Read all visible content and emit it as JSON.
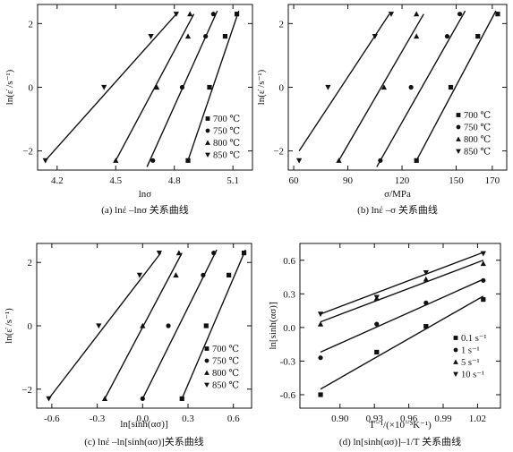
{
  "chart_data": [
    {
      "id": "a",
      "type": "scatter",
      "caption": "(a) lnέ –lnσ 关系曲线",
      "xlabel": "lnσ",
      "ylabel": "ln(ε̇ /s⁻¹)",
      "xlim": [
        4.1,
        5.2
      ],
      "ylim": [
        -2.6,
        2.6
      ],
      "xticks": [
        4.2,
        4.5,
        4.8,
        5.1
      ],
      "xtick_labels": [
        "4.2",
        "4.5",
        "4.8",
        "5.1"
      ],
      "yticks": [
        -2,
        0,
        2
      ],
      "ytick_labels": [
        "−2",
        "0",
        "2"
      ],
      "legend_position": "bottom-right",
      "series": [
        {
          "name": "700 ℃",
          "marker": "square",
          "x": [
            4.87,
            4.98,
            5.06,
            5.12
          ],
          "y": [
            -2.3,
            0.0,
            1.6,
            2.3
          ],
          "fit": [
            [
              4.87,
              -2.3
            ],
            [
              5.13,
              2.4
            ]
          ]
        },
        {
          "name": "750 ℃",
          "marker": "circle",
          "x": [
            4.69,
            4.84,
            4.96,
            5.0
          ],
          "y": [
            -2.3,
            0.0,
            1.6,
            2.3
          ],
          "fit": [
            [
              4.66,
              -2.5
            ],
            [
              5.02,
              2.4
            ]
          ]
        },
        {
          "name": "800 ℃",
          "marker": "triangle-up",
          "x": [
            4.5,
            4.71,
            4.87,
            4.88
          ],
          "y": [
            -2.3,
            0.0,
            1.6,
            2.3
          ],
          "fit": [
            [
              4.5,
              -2.3
            ],
            [
              4.9,
              2.3
            ]
          ]
        },
        {
          "name": "850 ℃",
          "marker": "triangle-down",
          "x": [
            4.14,
            4.44,
            4.68,
            4.81
          ],
          "y": [
            -2.3,
            0.0,
            1.6,
            2.3
          ],
          "fit": [
            [
              4.14,
              -2.3
            ],
            [
              4.81,
              2.3
            ]
          ]
        }
      ]
    },
    {
      "id": "b",
      "type": "scatter",
      "caption": "(b) lnέ –σ 关系曲线",
      "xlabel": "σ/MPa",
      "ylabel": "ln(ε̇ /s⁻¹)",
      "xlim": [
        57,
        178
      ],
      "ylim": [
        -2.6,
        2.6
      ],
      "xticks": [
        60,
        90,
        120,
        150,
        170
      ],
      "xtick_labels": [
        "60",
        "90",
        "120",
        "150",
        "170"
      ],
      "yticks": [
        -2,
        0,
        2
      ],
      "ytick_labels": [
        "−2",
        "0",
        "2"
      ],
      "legend_position": "bottom-right",
      "series": [
        {
          "name": "700 ℃",
          "marker": "square",
          "x": [
            128,
            147,
            162,
            173
          ],
          "y": [
            -2.3,
            0.0,
            1.6,
            2.3
          ],
          "fit": [
            [
              128,
              -2.3
            ],
            [
              172,
              2.4
            ]
          ]
        },
        {
          "name": "750 ℃",
          "marker": "circle",
          "x": [
            108,
            125,
            145,
            152
          ],
          "y": [
            -2.3,
            0.0,
            1.6,
            2.3
          ],
          "fit": [
            [
              106,
              -2.5
            ],
            [
              155,
              2.4
            ]
          ]
        },
        {
          "name": "800 ℃",
          "marker": "triangle-up",
          "x": [
            85,
            110,
            128,
            128
          ],
          "y": [
            -2.3,
            0.0,
            1.6,
            2.3
          ],
          "fit": [
            [
              85,
              -2.3
            ],
            [
              132,
              2.3
            ]
          ]
        },
        {
          "name": "850 ℃",
          "marker": "triangle-down",
          "x": [
            63,
            79,
            105,
            114
          ],
          "y": [
            -2.3,
            0.0,
            1.6,
            2.3
          ],
          "fit": [
            [
              63,
              -2.0
            ],
            [
              113,
              2.3
            ]
          ]
        }
      ]
    },
    {
      "id": "c",
      "type": "scatter",
      "caption": "(c) lnέ –ln[sinh(ασ)]关系曲线",
      "xlabel": "ln[sinh(ασ)]",
      "ylabel": "ln(ε̇ /s⁻¹)",
      "xlim": [
        -0.7,
        0.72
      ],
      "ylim": [
        -2.6,
        2.6
      ],
      "xticks": [
        -0.6,
        -0.3,
        0.0,
        0.3,
        0.6
      ],
      "xtick_labels": [
        "-0.6",
        "-0.3",
        "0.0",
        "0.3",
        "0.6"
      ],
      "yticks": [
        -2,
        0,
        2
      ],
      "ytick_labels": [
        "−2",
        "0",
        "2"
      ],
      "legend_position": "bottom-right",
      "series": [
        {
          "name": "700 ℃",
          "marker": "square",
          "x": [
            0.26,
            0.42,
            0.57,
            0.67
          ],
          "y": [
            -2.3,
            0.0,
            1.6,
            2.3
          ],
          "fit": [
            [
              0.26,
              -2.3
            ],
            [
              0.68,
              2.4
            ]
          ]
        },
        {
          "name": "750 ℃",
          "marker": "circle",
          "x": [
            0.0,
            0.17,
            0.4,
            0.47
          ],
          "y": [
            -2.3,
            0.0,
            1.6,
            2.3
          ],
          "fit": [
            [
              0.0,
              -2.3
            ],
            [
              0.49,
              2.4
            ]
          ]
        },
        {
          "name": "800 ℃",
          "marker": "triangle-up",
          "x": [
            -0.25,
            0.0,
            0.22,
            0.24
          ],
          "y": [
            -2.3,
            0.0,
            1.6,
            2.3
          ],
          "fit": [
            [
              -0.25,
              -2.3
            ],
            [
              0.26,
              2.3
            ]
          ]
        },
        {
          "name": "850 ℃",
          "marker": "triangle-down",
          "x": [
            -0.62,
            -0.29,
            -0.02,
            0.11
          ],
          "y": [
            -2.3,
            0.0,
            1.6,
            2.3
          ],
          "fit": [
            [
              -0.62,
              -2.3
            ],
            [
              0.12,
              2.3
            ]
          ]
        }
      ]
    },
    {
      "id": "d",
      "type": "scatter",
      "caption": "(d) ln[sinh(ασ)]–1/T 关系曲线",
      "xlabel": "T⁻¹/(×10⁻³K⁻¹)",
      "ylabel": "ln[sinh(ασ)]",
      "xlim": [
        0.865,
        1.04
      ],
      "ylim": [
        -0.72,
        0.75
      ],
      "xticks": [
        0.9,
        0.93,
        0.96,
        0.99,
        1.02
      ],
      "xtick_labels": [
        "0.90",
        "0.93",
        "0.96",
        "0.99",
        "1.02"
      ],
      "yticks": [
        -0.6,
        -0.3,
        0.0,
        0.3,
        0.6
      ],
      "ytick_labels": [
        "-0.6",
        "-0.3",
        "0.0",
        "0.3",
        "0.6"
      ],
      "legend_position": "bottom-right",
      "series": [
        {
          "name": "0.1 s⁻¹",
          "marker": "square",
          "x": [
            0.883,
            0.932,
            0.975,
            1.025
          ],
          "y": [
            -0.6,
            -0.22,
            0.01,
            0.25
          ],
          "fit": [
            [
              0.883,
              -0.55
            ],
            [
              1.025,
              0.28
            ]
          ]
        },
        {
          "name": "1 s⁻¹",
          "marker": "circle",
          "x": [
            0.883,
            0.932,
            0.975,
            1.025
          ],
          "y": [
            -0.27,
            0.03,
            0.22,
            0.42
          ],
          "fit": [
            [
              0.883,
              -0.22
            ],
            [
              1.025,
              0.43
            ]
          ]
        },
        {
          "name": "5 s⁻¹",
          "marker": "triangle-up",
          "x": [
            0.883,
            0.932,
            0.975,
            1.025
          ],
          "y": [
            0.03,
            0.26,
            0.43,
            0.57
          ],
          "fit": [
            [
              0.883,
              0.05
            ],
            [
              1.025,
              0.6
            ]
          ]
        },
        {
          "name": "10 s⁻¹",
          "marker": "triangle-down",
          "x": [
            0.883,
            0.932,
            0.975,
            1.025
          ],
          "y": [
            0.12,
            0.27,
            0.49,
            0.66
          ],
          "fit": [
            [
              0.883,
              0.12
            ],
            [
              1.025,
              0.67
            ]
          ]
        }
      ]
    }
  ]
}
